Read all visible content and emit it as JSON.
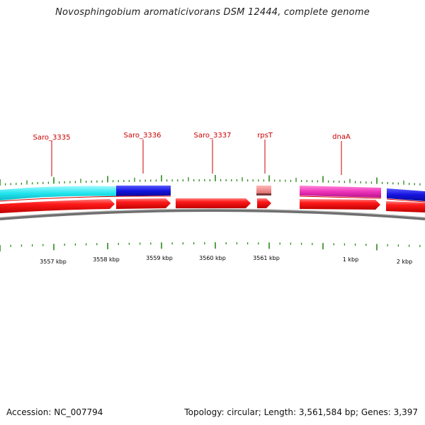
{
  "title": "Novosphingobium aromaticivorans DSM 12444, complete genome",
  "footer": {
    "accession": "Accession: NC_007794",
    "summary": "Topology: circular; Length: 3,561,584 bp; Genes: 3,397"
  },
  "gene_labels": [
    "Saro_3335",
    "Saro_3336",
    "Saro_3337",
    "rpsT",
    "dnaA"
  ],
  "kbp_labels": [
    "3557 kbp",
    "3558 kbp",
    "3559 kbp",
    "3560 kbp",
    "3561 kbp",
    "1 kbp",
    "2 kbp"
  ],
  "colors": {
    "gene_label": "#cc0000",
    "cds_arrow": "#ee0000",
    "cyan_feature": "#22e6ee",
    "blue_feature": "#1414e0",
    "pink_feature": "#f08a8a",
    "magenta_feature": "#ee33bb",
    "backbone": "#8a8a8a",
    "tick": "#2a8a1a"
  }
}
